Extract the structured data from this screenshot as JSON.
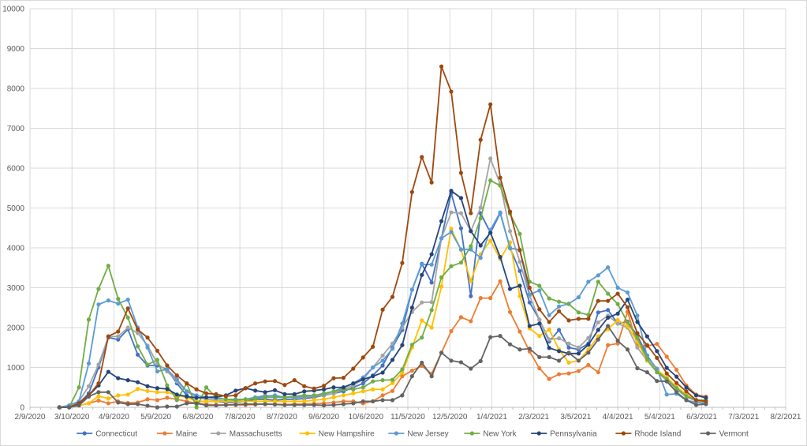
{
  "chart_data": {
    "type": "line",
    "title": "",
    "xlabel": "",
    "ylabel": "",
    "x_start": "3/1/2020",
    "x_step_days": 7,
    "xlim": [
      "2/9/2020",
      "8/2/2021"
    ],
    "x_tick_labels": [
      "2/9/2020",
      "3/10/2020",
      "4/9/2020",
      "5/9/2020",
      "6/8/2020",
      "7/8/2020",
      "8/7/2020",
      "9/6/2020",
      "10/6/2020",
      "11/5/2020",
      "12/5/2020",
      "1/4/2021",
      "2/3/2021",
      "3/5/2021",
      "4/4/2021",
      "5/4/2021",
      "6/3/2021",
      "7/3/2021",
      "8/2/2021"
    ],
    "ylim": [
      0,
      10000
    ],
    "y_tick_labels": [
      "0",
      "1000",
      "2000",
      "3000",
      "4000",
      "5000",
      "6000",
      "7000",
      "8000",
      "9000",
      "10000"
    ],
    "grid": true,
    "legend_position": "bottom",
    "series": [
      {
        "name": "Connecticut",
        "color": "#4472C4",
        "values": [
          0,
          0,
          100,
          350,
          1000,
          1750,
          1700,
          1960,
          1320,
          1050,
          1050,
          950,
          600,
          300,
          150,
          150,
          150,
          120,
          130,
          150,
          200,
          200,
          180,
          200,
          200,
          220,
          250,
          300,
          350,
          400,
          500,
          600,
          800,
          1050,
          1500,
          1940,
          2950,
          3600,
          3130,
          4240,
          5370,
          4490,
          2790,
          4870,
          4380,
          4870,
          4000,
          3420,
          2630,
          2200,
          1650,
          1940,
          1500,
          1450,
          1600,
          2380,
          2440,
          2100,
          2150,
          1800,
          1300,
          950,
          700,
          500,
          300,
          180,
          120
        ]
      },
      {
        "name": "Maine",
        "color": "#ED7D31",
        "values": [
          0,
          0,
          50,
          100,
          170,
          100,
          150,
          110,
          120,
          200,
          180,
          240,
          200,
          150,
          100,
          80,
          60,
          60,
          60,
          60,
          70,
          80,
          80,
          70,
          80,
          80,
          90,
          100,
          120,
          150,
          150,
          100,
          150,
          300,
          410,
          780,
          920,
          1040,
          840,
          1370,
          1910,
          2260,
          2160,
          2740,
          2740,
          3160,
          2390,
          1900,
          1400,
          980,
          710,
          830,
          850,
          910,
          1060,
          880,
          1560,
          1600,
          2400,
          1560,
          1540,
          1590,
          1270,
          940,
          550,
          320,
          270
        ]
      },
      {
        "name": "Massachusetts",
        "color": "#A5A5A5",
        "values": [
          0,
          0,
          150,
          530,
          1070,
          1770,
          1780,
          2000,
          1860,
          1550,
          1100,
          900,
          650,
          400,
          250,
          200,
          180,
          150,
          170,
          200,
          250,
          300,
          280,
          250,
          250,
          250,
          280,
          300,
          350,
          450,
          550,
          700,
          1000,
          1300,
          1600,
          2000,
          2390,
          2630,
          2640,
          4240,
          4890,
          4870,
          4420,
          5010,
          6240,
          5600,
          4420,
          3650,
          2800,
          2200,
          1700,
          1730,
          1600,
          1500,
          1740,
          2130,
          2300,
          2100,
          2000,
          1500,
          1170,
          880,
          680,
          450,
          260,
          160,
          120
        ]
      },
      {
        "name": "New Hampshire",
        "color": "#FFC000",
        "values": [
          0,
          0,
          50,
          100,
          280,
          220,
          300,
          320,
          460,
          410,
          380,
          380,
          300,
          250,
          150,
          150,
          150,
          150,
          150,
          150,
          150,
          150,
          150,
          150,
          150,
          150,
          180,
          200,
          250,
          300,
          350,
          400,
          450,
          450,
          610,
          870,
          1500,
          2180,
          2000,
          3030,
          4480,
          3950,
          3170,
          3840,
          4180,
          3720,
          4140,
          2790,
          1980,
          1790,
          1950,
          1450,
          1120,
          1170,
          1450,
          1780,
          1960,
          2190,
          2030,
          1650,
          1170,
          940,
          750,
          510,
          320,
          170,
          140
        ]
      },
      {
        "name": "New Jersey",
        "color": "#5B9BD5",
        "values": [
          0,
          50,
          150,
          1100,
          2580,
          2680,
          2600,
          2700,
          2000,
          1500,
          900,
          950,
          700,
          400,
          300,
          250,
          220,
          200,
          200,
          200,
          250,
          280,
          300,
          250,
          250,
          280,
          300,
          330,
          400,
          500,
          600,
          750,
          1000,
          1170,
          1470,
          2100,
          2950,
          3580,
          3580,
          4240,
          4400,
          3960,
          3960,
          3750,
          4450,
          4890,
          3990,
          3950,
          2830,
          2930,
          2310,
          2530,
          2600,
          2760,
          3150,
          3310,
          3510,
          3000,
          2880,
          2300,
          1270,
          970,
          320,
          340,
          180,
          120,
          100
        ]
      },
      {
        "name": "New York",
        "color": "#70AD47",
        "values": [
          0,
          0,
          500,
          2200,
          2970,
          3550,
          2720,
          2250,
          1530,
          1070,
          1190,
          550,
          180,
          600,
          0,
          500,
          250,
          200,
          180,
          200,
          220,
          250,
          250,
          250,
          280,
          300,
          300,
          350,
          400,
          450,
          450,
          500,
          650,
          680,
          690,
          950,
          1570,
          1750,
          2440,
          3260,
          3540,
          3630,
          4040,
          4740,
          5690,
          5560,
          4860,
          4350,
          3150,
          3050,
          2730,
          2650,
          2590,
          2380,
          2320,
          3150,
          2850,
          2590,
          2130,
          1740,
          1210,
          880,
          710,
          480,
          280,
          180,
          180
        ]
      },
      {
        "name": "Pennsylvania",
        "color": "#264478",
        "values": [
          0,
          0,
          100,
          300,
          550,
          890,
          730,
          680,
          630,
          530,
          480,
          460,
          320,
          270,
          240,
          250,
          260,
          300,
          420,
          480,
          420,
          380,
          430,
          330,
          330,
          400,
          420,
          450,
          500,
          500,
          600,
          700,
          780,
          870,
          1190,
          1560,
          2500,
          3320,
          3840,
          4670,
          5430,
          5250,
          4420,
          4060,
          4380,
          3770,
          2970,
          3050,
          2040,
          2100,
          1490,
          1410,
          1350,
          1350,
          1570,
          1940,
          2250,
          2350,
          2700,
          2140,
          1780,
          1410,
          990,
          770,
          500,
          300,
          240
        ]
      },
      {
        "name": "Rhode Island",
        "color": "#9E480E",
        "values": [
          0,
          0,
          100,
          300,
          600,
          1780,
          1900,
          2480,
          1950,
          1750,
          1420,
          1050,
          800,
          600,
          450,
          350,
          330,
          280,
          300,
          480,
          600,
          650,
          660,
          560,
          680,
          530,
          470,
          540,
          730,
          740,
          970,
          1250,
          1520,
          2450,
          2770,
          3620,
          5400,
          6280,
          5640,
          8550,
          7920,
          5880,
          4870,
          6710,
          7600,
          5760,
          4910,
          3940,
          3000,
          2460,
          2140,
          2410,
          2180,
          2220,
          2220,
          2670,
          2670,
          2850,
          2510,
          1860,
          1560,
          1240,
          850,
          610,
          400,
          180,
          150
        ]
      },
      {
        "name": "Vermont",
        "color": "#636363",
        "values": [
          0,
          0,
          50,
          270,
          380,
          380,
          120,
          80,
          80,
          40,
          0,
          20,
          20,
          100,
          100,
          50,
          50,
          60,
          70,
          80,
          80,
          80,
          70,
          60,
          60,
          60,
          60,
          50,
          60,
          80,
          100,
          150,
          150,
          180,
          180,
          300,
          780,
          1120,
          780,
          1370,
          1170,
          1130,
          970,
          1160,
          1760,
          1790,
          1580,
          1450,
          1470,
          1260,
          1260,
          1170,
          1370,
          1170,
          1370,
          1700,
          2040,
          1670,
          1450,
          980,
          880,
          660,
          650,
          380,
          180,
          60,
          80
        ]
      }
    ]
  }
}
